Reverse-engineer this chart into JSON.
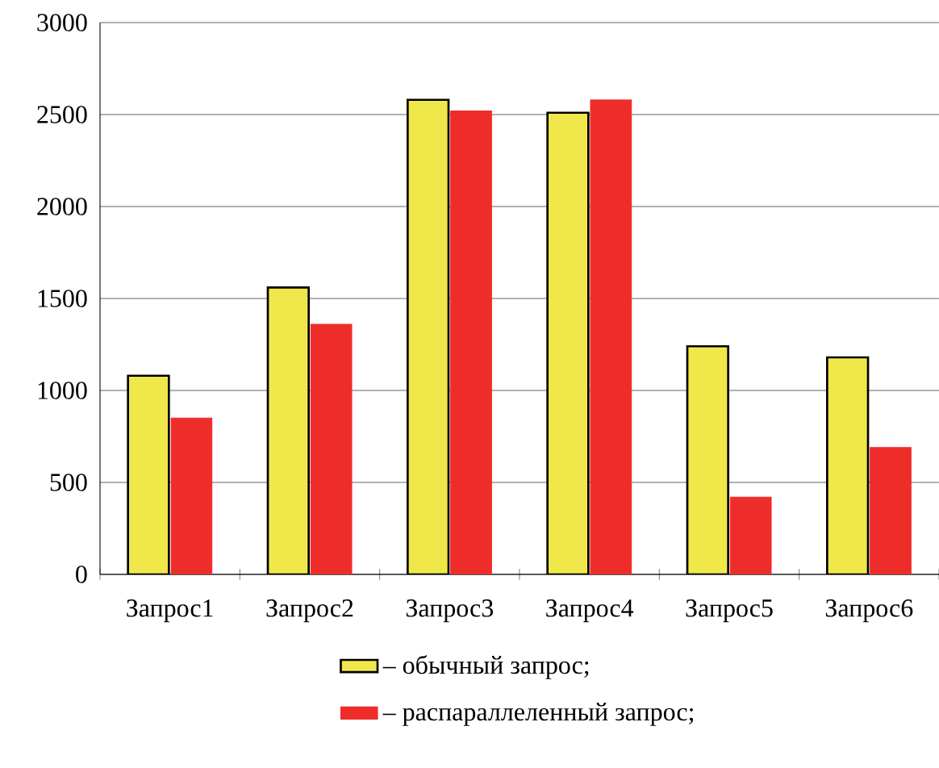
{
  "chart_data": {
    "type": "bar",
    "categories": [
      "Запрос1",
      "Запрос2",
      "Запрос3",
      "Запрос4",
      "Запрос5",
      "Запрос6"
    ],
    "series": [
      {
        "name": "– обычный запрос;",
        "color": "#f0e84a",
        "values": [
          1080,
          1560,
          2580,
          2510,
          1240,
          1180
        ]
      },
      {
        "name": "– распараллеленный запрос;",
        "color": "#ee2d2a",
        "values": [
          850,
          1360,
          2520,
          2580,
          420,
          690
        ]
      }
    ],
    "ylim": [
      0,
      3000
    ],
    "yticks": [
      0,
      500,
      1000,
      1500,
      2000,
      2500,
      3000
    ],
    "grid": "y",
    "legend": "bottom"
  }
}
